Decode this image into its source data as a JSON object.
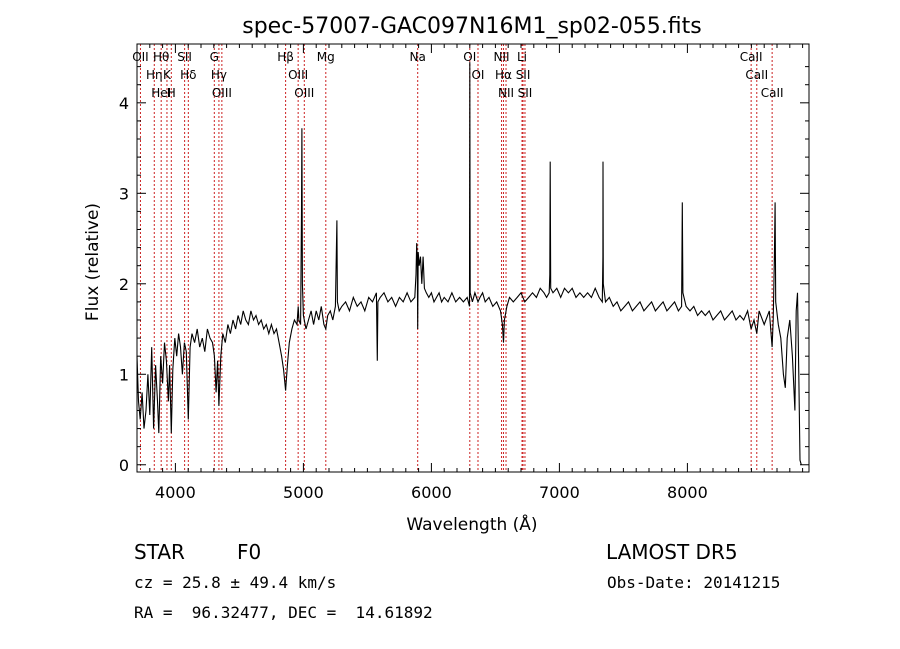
{
  "chart_data": {
    "type": "line",
    "title": "spec-57007-GAC097N16M1_sp02-055.fits",
    "xlabel": "Wavelength (Å)",
    "ylabel": "Flux (relative)",
    "xlim": [
      3700,
      8950
    ],
    "ylim": [
      -0.08,
      4.65
    ],
    "xticks": [
      4000,
      5000,
      6000,
      7000,
      8000
    ],
    "xtick_labels": [
      "4000",
      "5000",
      "6000",
      "7000",
      "8000"
    ],
    "yticks": [
      0,
      1,
      2,
      3,
      4
    ],
    "ytick_labels": [
      "0",
      "1",
      "2",
      "3",
      "4"
    ],
    "grid": false,
    "series": [
      {
        "points": [
          [
            3700,
            1.2
          ],
          [
            3712,
            0.7
          ],
          [
            3725,
            0.5
          ],
          [
            3740,
            0.8
          ],
          [
            3755,
            0.4
          ],
          [
            3770,
            0.6
          ],
          [
            3785,
            1.0
          ],
          [
            3800,
            0.55
          ],
          [
            3815,
            1.3
          ],
          [
            3830,
            0.4
          ],
          [
            3845,
            1.1
          ],
          [
            3860,
            0.7
          ],
          [
            3870,
            0.35
          ],
          [
            3885,
            1.2
          ],
          [
            3900,
            0.9
          ],
          [
            3915,
            1.35
          ],
          [
            3930,
            1.15
          ],
          [
            3945,
            0.7
          ],
          [
            3955,
            1.1
          ],
          [
            3968,
            0.35
          ],
          [
            3980,
            1.05
          ],
          [
            3995,
            1.4
          ],
          [
            4010,
            1.2
          ],
          [
            4025,
            1.45
          ],
          [
            4040,
            1.3
          ],
          [
            4055,
            1.0
          ],
          [
            4070,
            1.35
          ],
          [
            4085,
            1.25
          ],
          [
            4101,
            0.5
          ],
          [
            4115,
            1.3
          ],
          [
            4130,
            1.45
          ],
          [
            4150,
            1.35
          ],
          [
            4170,
            1.5
          ],
          [
            4190,
            1.3
          ],
          [
            4210,
            1.4
          ],
          [
            4230,
            1.25
          ],
          [
            4250,
            1.5
          ],
          [
            4270,
            1.4
          ],
          [
            4290,
            1.35
          ],
          [
            4305,
            1.2
          ],
          [
            4318,
            0.8
          ],
          [
            4330,
            1.15
          ],
          [
            4340,
            0.65
          ],
          [
            4355,
            1.2
          ],
          [
            4370,
            1.45
          ],
          [
            4390,
            1.35
          ],
          [
            4410,
            1.55
          ],
          [
            4430,
            1.45
          ],
          [
            4450,
            1.6
          ],
          [
            4470,
            1.5
          ],
          [
            4490,
            1.65
          ],
          [
            4510,
            1.55
          ],
          [
            4530,
            1.7
          ],
          [
            4550,
            1.6
          ],
          [
            4570,
            1.55
          ],
          [
            4590,
            1.7
          ],
          [
            4610,
            1.6
          ],
          [
            4630,
            1.65
          ],
          [
            4650,
            1.55
          ],
          [
            4670,
            1.6
          ],
          [
            4690,
            1.5
          ],
          [
            4710,
            1.55
          ],
          [
            4730,
            1.45
          ],
          [
            4750,
            1.55
          ],
          [
            4770,
            1.45
          ],
          [
            4790,
            1.5
          ],
          [
            4810,
            1.35
          ],
          [
            4830,
            1.2
          ],
          [
            4845,
            1.05
          ],
          [
            4861,
            0.82
          ],
          [
            4875,
            1.1
          ],
          [
            4890,
            1.35
          ],
          [
            4910,
            1.5
          ],
          [
            4930,
            1.6
          ],
          [
            4950,
            1.55
          ],
          [
            4959,
            1.75
          ],
          [
            4965,
            1.6
          ],
          [
            4978,
            1.55
          ],
          [
            4985,
            2.8
          ],
          [
            4988,
            3.72
          ],
          [
            4992,
            2.0
          ],
          [
            5000,
            1.65
          ],
          [
            5020,
            1.5
          ],
          [
            5040,
            1.6
          ],
          [
            5060,
            1.7
          ],
          [
            5080,
            1.55
          ],
          [
            5100,
            1.7
          ],
          [
            5120,
            1.6
          ],
          [
            5140,
            1.75
          ],
          [
            5160,
            1.55
          ],
          [
            5175,
            1.5
          ],
          [
            5190,
            1.65
          ],
          [
            5210,
            1.7
          ],
          [
            5230,
            1.6
          ],
          [
            5250,
            1.75
          ],
          [
            5262,
            2.7
          ],
          [
            5266,
            1.8
          ],
          [
            5280,
            1.7
          ],
          [
            5300,
            1.75
          ],
          [
            5330,
            1.8
          ],
          [
            5360,
            1.7
          ],
          [
            5390,
            1.85
          ],
          [
            5420,
            1.75
          ],
          [
            5450,
            1.8
          ],
          [
            5480,
            1.7
          ],
          [
            5510,
            1.85
          ],
          [
            5540,
            1.8
          ],
          [
            5570,
            1.9
          ],
          [
            5577,
            1.15
          ],
          [
            5582,
            1.8
          ],
          [
            5600,
            1.85
          ],
          [
            5630,
            1.9
          ],
          [
            5660,
            1.8
          ],
          [
            5690,
            1.85
          ],
          [
            5720,
            1.75
          ],
          [
            5750,
            1.85
          ],
          [
            5780,
            1.8
          ],
          [
            5810,
            1.9
          ],
          [
            5840,
            1.8
          ],
          [
            5870,
            1.85
          ],
          [
            5880,
            2.1
          ],
          [
            5885,
            2.45
          ],
          [
            5890,
            2.25
          ],
          [
            5893,
            1.5
          ],
          [
            5897,
            2.35
          ],
          [
            5905,
            2.2
          ],
          [
            5915,
            2.3
          ],
          [
            5925,
            2.0
          ],
          [
            5935,
            2.3
          ],
          [
            5945,
            1.95
          ],
          [
            5960,
            1.9
          ],
          [
            5980,
            1.85
          ],
          [
            6000,
            1.9
          ],
          [
            6020,
            1.8
          ],
          [
            6040,
            1.85
          ],
          [
            6060,
            1.9
          ],
          [
            6080,
            1.8
          ],
          [
            6100,
            1.85
          ],
          [
            6130,
            1.8
          ],
          [
            6160,
            1.9
          ],
          [
            6190,
            1.8
          ],
          [
            6220,
            1.85
          ],
          [
            6250,
            1.8
          ],
          [
            6280,
            1.85
          ],
          [
            6298,
            1.75
          ],
          [
            6300,
            4.45
          ],
          [
            6303,
            1.9
          ],
          [
            6320,
            1.8
          ],
          [
            6340,
            1.9
          ],
          [
            6364,
            1.8
          ],
          [
            6380,
            1.85
          ],
          [
            6400,
            1.9
          ],
          [
            6420,
            1.8
          ],
          [
            6450,
            1.85
          ],
          [
            6480,
            1.75
          ],
          [
            6510,
            1.8
          ],
          [
            6540,
            1.7
          ],
          [
            6555,
            1.55
          ],
          [
            6563,
            1.35
          ],
          [
            6570,
            1.6
          ],
          [
            6590,
            1.75
          ],
          [
            6610,
            1.85
          ],
          [
            6640,
            1.8
          ],
          [
            6670,
            1.85
          ],
          [
            6700,
            1.9
          ],
          [
            6730,
            1.8
          ],
          [
            6760,
            1.85
          ],
          [
            6790,
            1.9
          ],
          [
            6820,
            1.85
          ],
          [
            6850,
            1.95
          ],
          [
            6880,
            1.9
          ],
          [
            6900,
            1.85
          ],
          [
            6920,
            1.9
          ],
          [
            6925,
            2.1
          ],
          [
            6928,
            3.35
          ],
          [
            6932,
            1.95
          ],
          [
            6950,
            1.9
          ],
          [
            6980,
            1.95
          ],
          [
            7010,
            1.85
          ],
          [
            7040,
            1.95
          ],
          [
            7070,
            1.9
          ],
          [
            7100,
            1.95
          ],
          [
            7130,
            1.85
          ],
          [
            7160,
            1.9
          ],
          [
            7190,
            1.85
          ],
          [
            7220,
            1.9
          ],
          [
            7250,
            1.85
          ],
          [
            7280,
            1.95
          ],
          [
            7310,
            1.85
          ],
          [
            7335,
            1.8
          ],
          [
            7340,
            2.3
          ],
          [
            7341,
            3.35
          ],
          [
            7343,
            2.0
          ],
          [
            7360,
            1.8
          ],
          [
            7390,
            1.85
          ],
          [
            7420,
            1.75
          ],
          [
            7450,
            1.8
          ],
          [
            7480,
            1.7
          ],
          [
            7510,
            1.75
          ],
          [
            7540,
            1.8
          ],
          [
            7570,
            1.7
          ],
          [
            7600,
            1.75
          ],
          [
            7630,
            1.8
          ],
          [
            7660,
            1.7
          ],
          [
            7690,
            1.75
          ],
          [
            7720,
            1.8
          ],
          [
            7750,
            1.7
          ],
          [
            7780,
            1.75
          ],
          [
            7810,
            1.8
          ],
          [
            7840,
            1.7
          ],
          [
            7870,
            1.75
          ],
          [
            7900,
            1.8
          ],
          [
            7930,
            1.7
          ],
          [
            7955,
            1.75
          ],
          [
            7960,
            2.9
          ],
          [
            7965,
            1.9
          ],
          [
            7990,
            1.75
          ],
          [
            8020,
            1.7
          ],
          [
            8050,
            1.75
          ],
          [
            8080,
            1.65
          ],
          [
            8110,
            1.7
          ],
          [
            8140,
            1.65
          ],
          [
            8170,
            1.7
          ],
          [
            8200,
            1.6
          ],
          [
            8230,
            1.65
          ],
          [
            8260,
            1.7
          ],
          [
            8290,
            1.6
          ],
          [
            8320,
            1.65
          ],
          [
            8350,
            1.7
          ],
          [
            8380,
            1.6
          ],
          [
            8410,
            1.65
          ],
          [
            8440,
            1.6
          ],
          [
            8470,
            1.7
          ],
          [
            8498,
            1.5
          ],
          [
            8520,
            1.6
          ],
          [
            8542,
            1.45
          ],
          [
            8560,
            1.7
          ],
          [
            8600,
            1.55
          ],
          [
            8640,
            1.7
          ],
          [
            8662,
            1.3
          ],
          [
            8670,
            1.6
          ],
          [
            8680,
            2.3
          ],
          [
            8685,
            2.9
          ],
          [
            8690,
            1.8
          ],
          [
            8710,
            1.55
          ],
          [
            8730,
            1.4
          ],
          [
            8750,
            1.0
          ],
          [
            8765,
            0.85
          ],
          [
            8780,
            1.4
          ],
          [
            8800,
            1.6
          ],
          [
            8820,
            1.2
          ],
          [
            8840,
            0.6
          ],
          [
            8850,
            1.7
          ],
          [
            8860,
            1.9
          ],
          [
            8870,
            1.0
          ],
          [
            8880,
            0.05
          ],
          [
            8890,
            0.0
          ]
        ]
      }
    ],
    "lines": [
      {
        "wavelength": 3727,
        "labels": [
          "OII"
        ]
      },
      {
        "wavelength": 3835,
        "labels": [
          "Hη"
        ]
      },
      {
        "wavelength": 3889,
        "labels": [
          "Hθ",
          "HeI"
        ]
      },
      {
        "wavelength": 3934,
        "labels": [
          "K"
        ]
      },
      {
        "wavelength": 3968,
        "labels": [
          "H"
        ]
      },
      {
        "wavelength": 4072,
        "labels": [
          "SII"
        ]
      },
      {
        "wavelength": 4101,
        "labels": [
          "Hδ"
        ]
      },
      {
        "wavelength": 4304,
        "labels": [
          "G"
        ]
      },
      {
        "wavelength": 4340,
        "labels": [
          "Hγ"
        ]
      },
      {
        "wavelength": 4363,
        "labels": [
          "OIII"
        ]
      },
      {
        "wavelength": 4861,
        "labels": [
          "Hβ"
        ]
      },
      {
        "wavelength": 4959,
        "labels": [
          "OIII"
        ]
      },
      {
        "wavelength": 5007,
        "labels": [
          "OIII"
        ]
      },
      {
        "wavelength": 5175,
        "labels": [
          "Mg"
        ]
      },
      {
        "wavelength": 5893,
        "labels": [
          "Na"
        ]
      },
      {
        "wavelength": 6300,
        "labels": [
          "OI"
        ]
      },
      {
        "wavelength": 6364,
        "labels": [
          "OI"
        ]
      },
      {
        "wavelength": 6548,
        "labels": [
          "NII"
        ]
      },
      {
        "wavelength": 6563,
        "labels": [
          "Hα"
        ]
      },
      {
        "wavelength": 6583,
        "labels": [
          "NII"
        ]
      },
      {
        "wavelength": 6708,
        "labels": [
          "Li"
        ]
      },
      {
        "wavelength": 6716,
        "labels": [
          "SII"
        ]
      },
      {
        "wavelength": 6731,
        "labels": [
          "SII"
        ]
      },
      {
        "wavelength": 8498,
        "labels": [
          "CaII"
        ]
      },
      {
        "wavelength": 8542,
        "labels": [
          "CaII"
        ]
      },
      {
        "wavelength": 8662,
        "labels": [
          "CaII"
        ]
      }
    ]
  },
  "info": {
    "class_label": "STAR",
    "subclass": "F0",
    "survey": "LAMOST DR5",
    "cz": "cz = 25.8 ± 49.4 km/s",
    "obs_date": "Obs-Date: 20141215",
    "coords": "RA =  96.32477, DEC =  14.61892"
  },
  "colors": {
    "line_marker": "#cc2222",
    "spectrum": "#000000",
    "axes": "#000000"
  }
}
